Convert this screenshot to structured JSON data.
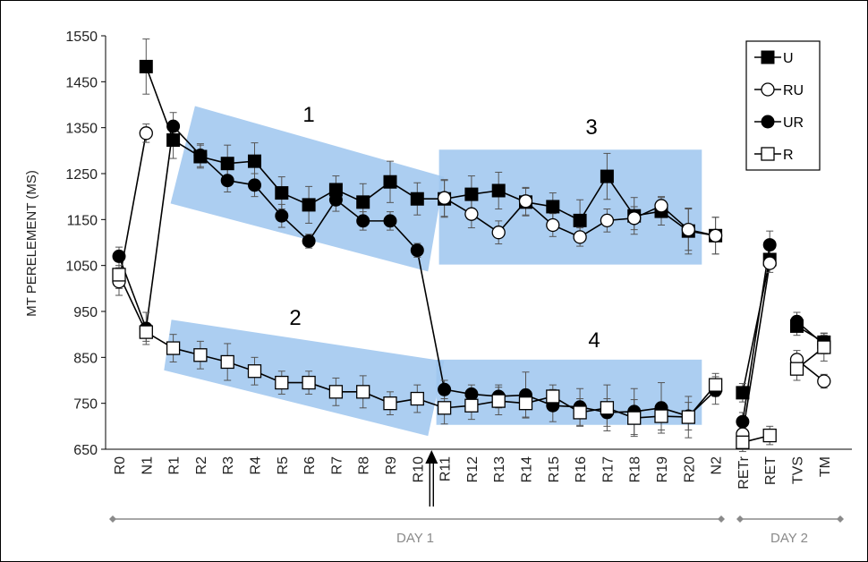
{
  "chart_data": {
    "type": "line",
    "ylabel": "MT PERELEMENT (MS)",
    "ylim": [
      650,
      1550
    ],
    "yticks": [
      650,
      750,
      850,
      950,
      1050,
      1150,
      1250,
      1350,
      1450,
      1550
    ],
    "categories": [
      "R0",
      "N1",
      "R1",
      "R2",
      "R3",
      "R4",
      "R5",
      "R6",
      "R7",
      "R8",
      "R9",
      "R10",
      "R11",
      "R12",
      "R13",
      "R14",
      "R15",
      "R16",
      "R17",
      "R18",
      "R19",
      "R20",
      "N2",
      "RETr",
      "RET",
      "TVS",
      "TM"
    ],
    "series": [
      {
        "name": "U",
        "marker": "square-filled",
        "values": [
          null,
          1483,
          1323,
          1287,
          1272,
          1277,
          1208,
          1182,
          1215,
          1188,
          1232,
          1195,
          1195,
          1205,
          1213,
          1188,
          1178,
          1148,
          1244,
          1158,
          1168,
          1125,
          1115,
          773,
          1063,
          918,
          883
        ],
        "errors": [
          null,
          60,
          40,
          25,
          40,
          40,
          35,
          40,
          30,
          40,
          45,
          35,
          40,
          40,
          40,
          30,
          30,
          45,
          50,
          40,
          30,
          50,
          40,
          20,
          20,
          20,
          20
        ]
      },
      {
        "name": "RU",
        "marker": "circle-open",
        "values": [
          1015,
          1338,
          null,
          null,
          null,
          null,
          null,
          null,
          null,
          null,
          null,
          null,
          1197,
          1162,
          1122,
          1190,
          1138,
          1112,
          1148,
          1153,
          1180,
          1128,
          1115,
          683,
          1055,
          845,
          798
        ],
        "errors": [
          30,
          20,
          null,
          null,
          null,
          null,
          null,
          null,
          null,
          null,
          null,
          null,
          40,
          30,
          25,
          30,
          25,
          20,
          25,
          25,
          20,
          45,
          40,
          20,
          20,
          20,
          15
        ]
      },
      {
        "name": "UR",
        "marker": "circle-filled",
        "values": [
          1070,
          913,
          1353,
          1290,
          1235,
          1225,
          1158,
          1103,
          1193,
          1147,
          1147,
          1083,
          780,
          770,
          765,
          768,
          745,
          742,
          730,
          732,
          740,
          722,
          778,
          710,
          1095,
          928,
          878
        ],
        "errors": [
          20,
          35,
          30,
          25,
          25,
          25,
          25,
          15,
          25,
          20,
          20,
          15,
          20,
          20,
          25,
          50,
          35,
          40,
          30,
          50,
          55,
          30,
          30,
          20,
          30,
          20,
          20
        ]
      },
      {
        "name": "R",
        "marker": "square-open",
        "values": [
          1030,
          905,
          870,
          855,
          840,
          820,
          795,
          795,
          775,
          775,
          750,
          760,
          740,
          745,
          755,
          750,
          765,
          730,
          740,
          718,
          722,
          720,
          790,
          665,
          680,
          825,
          872
        ],
        "errors": [
          30,
          20,
          30,
          30,
          40,
          30,
          25,
          25,
          30,
          35,
          25,
          30,
          35,
          30,
          30,
          30,
          25,
          30,
          50,
          40,
          30,
          45,
          25,
          20,
          20,
          25,
          30
        ]
      }
    ],
    "annotations": {
      "region_1": "1",
      "region_2": "2",
      "region_3": "3",
      "region_4": "4"
    },
    "day_labels": {
      "day1": "DAY 1",
      "day2": "DAY 2"
    },
    "legend_position": "top-right",
    "grid": false,
    "colors": {
      "filled": "#000000",
      "open": "#ffffff",
      "region": "#9ec6ef",
      "day_axis": "#8a8a8a"
    }
  }
}
